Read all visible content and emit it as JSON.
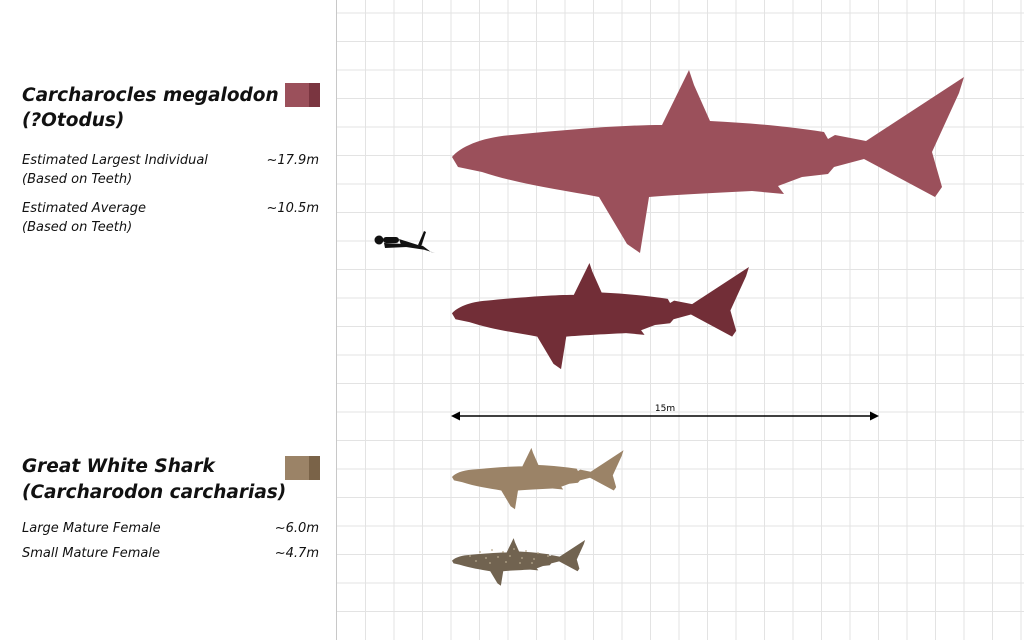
{
  "megalodon": {
    "title_line1": "Carcharocles megalodon",
    "title_line2": "(?Otodus)",
    "color": "#9b505b",
    "color_dark": "#7a3540",
    "rows": [
      {
        "label_line1": "Estimated Largest Individual",
        "label_line2": "(Based on Teeth)",
        "value": "~17.9m"
      },
      {
        "label_line1": "Estimated Average",
        "label_line2": "(Based on Teeth)",
        "value": "~10.5m"
      }
    ],
    "silhouette_colors": [
      "#9b505b",
      "#722e37"
    ]
  },
  "great_white": {
    "title_line1": "Great White Shark",
    "title_line2": "(Carcharodon carcharias)",
    "color": "#9b8367",
    "color_dark": "#7a6348",
    "rows": [
      {
        "label_line1": "Large Mature Female",
        "value": "~6.0m"
      },
      {
        "label_line1": "Small Mature Female",
        "value": "~4.7m"
      }
    ],
    "silhouette_colors": [
      "#9b8367",
      "#716350"
    ]
  },
  "scale_bar": {
    "label": "15m"
  },
  "grid_color": "#e3e3e3",
  "diver_color": "#111111"
}
